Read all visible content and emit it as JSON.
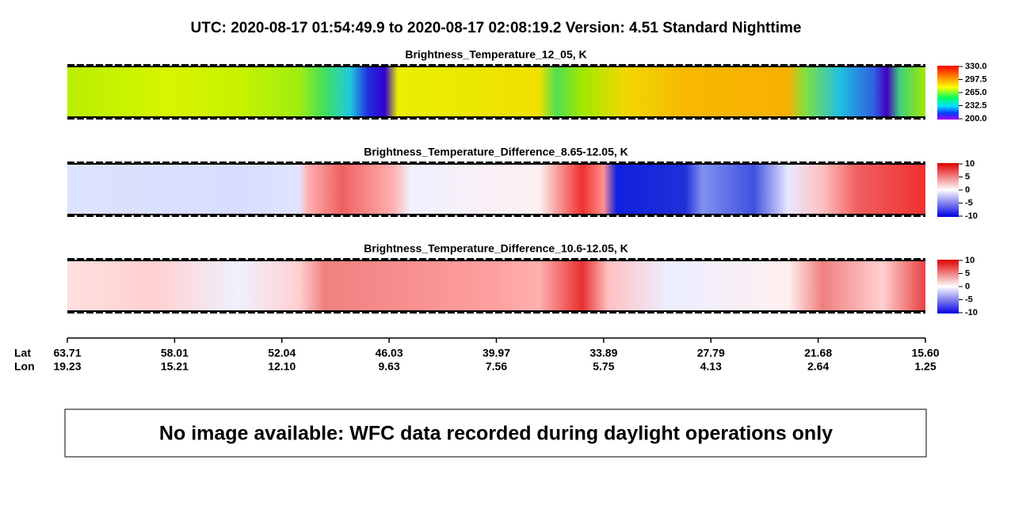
{
  "header": {
    "title": "UTC:  2020-08-17   01:54:49.9  to  2020-08-17   02:08:19.2    Version: 4.51  Standard Nighttime"
  },
  "panels": [
    {
      "title": "Brightness_Temperature_12_05, K",
      "colorbar_ticks": [
        "330.0",
        "297.5",
        "265.0",
        "232.5",
        "200.0"
      ]
    },
    {
      "title": "Brightness_Temperature_Difference_8.65-12.05, K",
      "colorbar_ticks": [
        "10",
        "5",
        "0",
        "-5",
        "-10"
      ]
    },
    {
      "title": "Brightness_Temperature_Difference_10.6-12.05, K",
      "colorbar_ticks": [
        "10",
        "5",
        "0",
        "-5",
        "-10"
      ]
    }
  ],
  "axis": {
    "lat_label": "Lat",
    "lon_label": "Lon",
    "lat": [
      "63.71",
      "58.01",
      "52.04",
      "46.03",
      "39.97",
      "33.89",
      "27.79",
      "21.68",
      "15.60"
    ],
    "lon": [
      "19.23",
      "15.21",
      "12.10",
      "9.63",
      "7.56",
      "5.75",
      "4.13",
      "2.64",
      "1.25"
    ]
  },
  "notice": "No image available: WFC data recorded during daylight operations only"
}
